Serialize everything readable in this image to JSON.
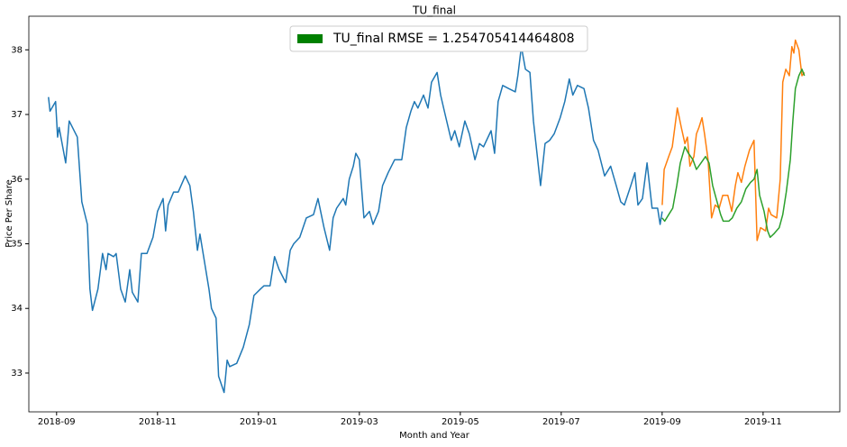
{
  "chart_data": {
    "type": "line",
    "title": "TU_final",
    "x_label": "Month and Year",
    "y_label": "Price Per Share",
    "legend": {
      "label": "TU_final RMSE = 1.254705414464808",
      "color": "#008000",
      "position": "upper center"
    },
    "xlim": [
      -0.55,
      15.52
    ],
    "xticks": [
      {
        "value": 0,
        "label": "2018-09"
      },
      {
        "value": 2,
        "label": "2018-11"
      },
      {
        "value": 4,
        "label": "2019-01"
      },
      {
        "value": 6,
        "label": "2019-03"
      },
      {
        "value": 8,
        "label": "2019-05"
      },
      {
        "value": 10,
        "label": "2019-07"
      },
      {
        "value": 12,
        "label": "2019-09"
      },
      {
        "value": 14,
        "label": "2019-11"
      }
    ],
    "ylim": [
      32.4,
      38.52
    ],
    "yticks": [
      33,
      34,
      35,
      36,
      37,
      38
    ],
    "series": [
      {
        "color": "#1f77b4",
        "x": [
          -0.16,
          -0.13,
          -0.02,
          0.02,
          0.05,
          0.18,
          0.25,
          0.41,
          0.5,
          0.61,
          0.66,
          0.71,
          0.82,
          0.91,
          0.98,
          1.02,
          1.13,
          1.18,
          1.27,
          1.36,
          1.45,
          1.5,
          1.61,
          1.68,
          1.79,
          1.91,
          2.0,
          2.11,
          2.16,
          2.21,
          2.32,
          2.41,
          2.55,
          2.64,
          2.71,
          2.79,
          2.84,
          3.02,
          3.07,
          3.16,
          3.21,
          3.32,
          3.38,
          3.43,
          3.57,
          3.7,
          3.82,
          3.91,
          4.04,
          4.11,
          4.23,
          4.32,
          4.41,
          4.54,
          4.63,
          4.7,
          4.82,
          4.95,
          5.09,
          5.18,
          5.3,
          5.41,
          5.48,
          5.55,
          5.68,
          5.73,
          5.8,
          5.88,
          5.93,
          6.0,
          6.09,
          6.2,
          6.27,
          6.38,
          6.46,
          6.57,
          6.7,
          6.84,
          6.93,
          7.02,
          7.09,
          7.16,
          7.27,
          7.36,
          7.43,
          7.54,
          7.61,
          7.7,
          7.82,
          7.89,
          7.98,
          8.09,
          8.18,
          8.29,
          8.38,
          8.46,
          8.61,
          8.68,
          8.75,
          8.84,
          8.96,
          9.09,
          9.14,
          9.21,
          9.29,
          9.38,
          9.45,
          9.59,
          9.68,
          9.77,
          9.86,
          9.98,
          10.07,
          10.16,
          10.23,
          10.32,
          10.45,
          10.54,
          10.64,
          10.73,
          10.86,
          10.98,
          11.09,
          11.18,
          11.25,
          11.38,
          11.46,
          11.52,
          11.61,
          11.7,
          11.8,
          11.91,
          11.96,
          12.0
        ],
        "values": [
          37.27,
          37.05,
          37.2,
          36.65,
          36.8,
          36.25,
          36.9,
          36.65,
          35.65,
          35.3,
          34.3,
          33.97,
          34.3,
          34.85,
          34.6,
          34.85,
          34.8,
          34.85,
          34.3,
          34.1,
          34.6,
          34.25,
          34.1,
          34.85,
          34.85,
          35.1,
          35.5,
          35.7,
          35.2,
          35.6,
          35.8,
          35.8,
          36.05,
          35.9,
          35.5,
          34.9,
          35.15,
          34.3,
          34.0,
          33.85,
          32.95,
          32.7,
          33.2,
          33.1,
          33.15,
          33.4,
          33.75,
          34.2,
          34.3,
          34.35,
          34.35,
          34.8,
          34.6,
          34.4,
          34.9,
          35.0,
          35.1,
          35.4,
          35.45,
          35.7,
          35.25,
          34.9,
          35.4,
          35.55,
          35.7,
          35.6,
          36.0,
          36.2,
          36.4,
          36.3,
          35.4,
          35.5,
          35.3,
          35.5,
          35.9,
          36.1,
          36.3,
          36.3,
          36.8,
          37.05,
          37.2,
          37.1,
          37.3,
          37.1,
          37.5,
          37.65,
          37.3,
          37.0,
          36.6,
          36.75,
          36.5,
          36.9,
          36.7,
          36.3,
          36.55,
          36.5,
          36.75,
          36.4,
          37.2,
          37.45,
          37.4,
          37.35,
          37.6,
          38.05,
          37.7,
          37.65,
          36.9,
          35.9,
          36.55,
          36.6,
          36.7,
          36.95,
          37.2,
          37.55,
          37.3,
          37.45,
          37.4,
          37.1,
          36.6,
          36.45,
          36.05,
          36.2,
          35.9,
          35.65,
          35.6,
          35.9,
          36.1,
          35.6,
          35.7,
          36.25,
          35.55,
          35.55,
          35.3,
          35.5
        ]
      },
      {
        "color": "#ff7f0e",
        "x": [
          12.0,
          12.04,
          12.13,
          12.2,
          12.25,
          12.3,
          12.38,
          12.45,
          12.5,
          12.55,
          12.63,
          12.68,
          12.73,
          12.79,
          12.84,
          12.91,
          12.98,
          13.05,
          13.13,
          13.2,
          13.3,
          13.38,
          13.45,
          13.5,
          13.57,
          13.64,
          13.73,
          13.82,
          13.88,
          13.95,
          14.05,
          14.11,
          14.16,
          14.27,
          14.34,
          14.39,
          14.45,
          14.52,
          14.57,
          14.61,
          14.64,
          14.71,
          14.77,
          14.82
        ],
        "values": [
          35.6,
          36.15,
          36.35,
          36.5,
          36.8,
          37.1,
          36.8,
          36.55,
          36.65,
          36.2,
          36.35,
          36.7,
          36.8,
          36.95,
          36.7,
          36.3,
          35.4,
          35.6,
          35.55,
          35.75,
          35.75,
          35.5,
          35.9,
          36.1,
          35.95,
          36.2,
          36.45,
          36.6,
          35.05,
          35.25,
          35.2,
          35.55,
          35.45,
          35.4,
          36.0,
          37.5,
          37.7,
          37.6,
          38.05,
          37.95,
          38.15,
          38.0,
          37.6,
          37.65
        ]
      },
      {
        "color": "#2ca02c",
        "x": [
          12.0,
          12.05,
          12.13,
          12.21,
          12.29,
          12.36,
          12.45,
          12.52,
          12.61,
          12.68,
          12.77,
          12.86,
          12.93,
          13.0,
          13.07,
          13.16,
          13.21,
          13.32,
          13.39,
          13.48,
          13.57,
          13.66,
          13.75,
          13.82,
          13.88,
          13.93,
          14.02,
          14.09,
          14.14,
          14.21,
          14.32,
          14.39,
          14.46,
          14.54,
          14.59,
          14.64,
          14.71,
          14.77,
          14.82
        ],
        "values": [
          35.4,
          35.35,
          35.45,
          35.55,
          35.9,
          36.25,
          36.5,
          36.4,
          36.3,
          36.15,
          36.25,
          36.35,
          36.25,
          35.9,
          35.7,
          35.45,
          35.35,
          35.35,
          35.4,
          35.55,
          35.65,
          35.85,
          35.95,
          36.0,
          36.15,
          35.75,
          35.5,
          35.2,
          35.1,
          35.15,
          35.25,
          35.45,
          35.8,
          36.3,
          36.9,
          37.4,
          37.6,
          37.7,
          37.6
        ]
      }
    ]
  }
}
